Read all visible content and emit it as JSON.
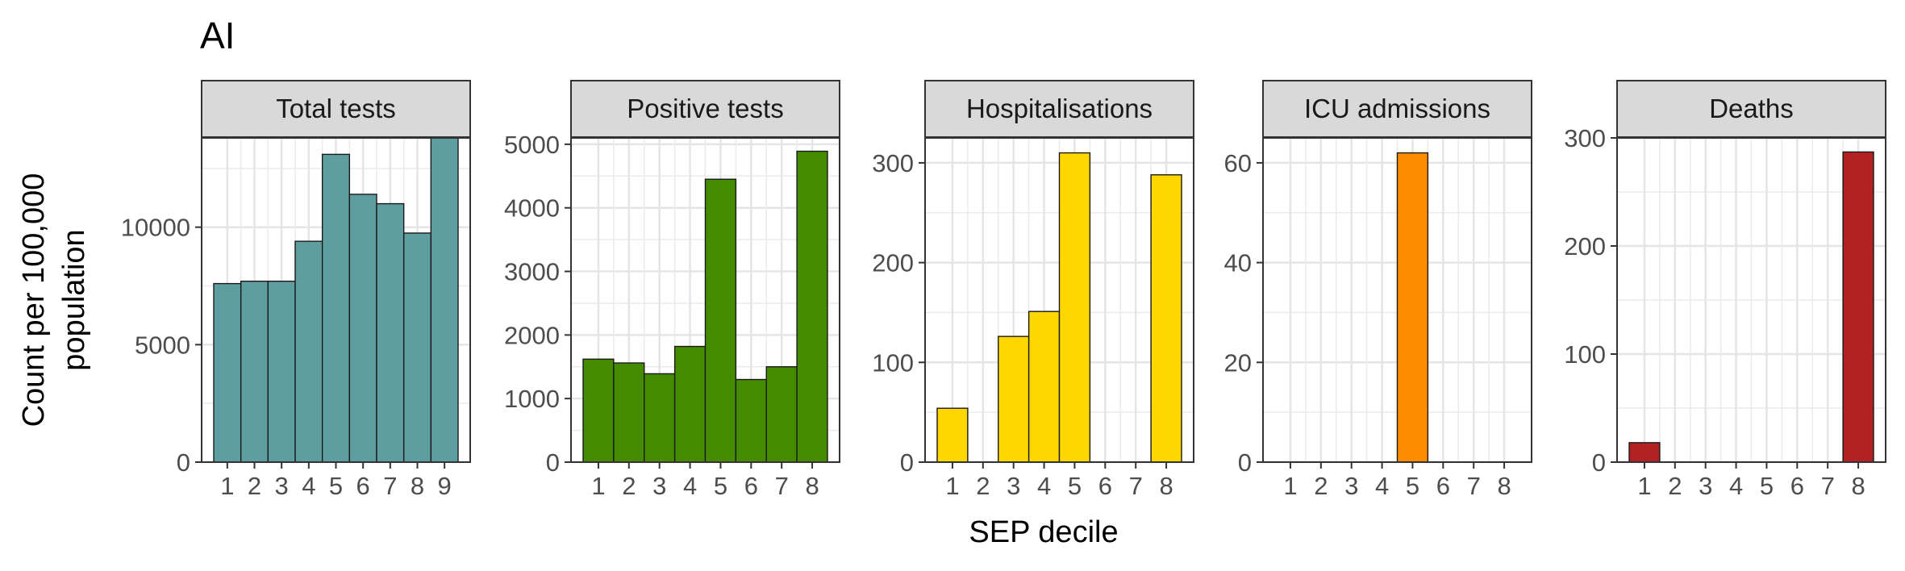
{
  "figure": {
    "tag": "AI",
    "ylabel_line1": "Count per 100,000",
    "ylabel_line2": "population",
    "xlabel": "SEP decile"
  },
  "chart_data": [
    {
      "type": "bar",
      "title": "Total tests",
      "color": "#5F9EA0",
      "categories": [
        "1",
        "2",
        "3",
        "4",
        "5",
        "6",
        "7",
        "8",
        "9"
      ],
      "values": [
        7600,
        7700,
        7700,
        9400,
        13100,
        11400,
        11000,
        9750,
        13800
      ],
      "ylim": [
        0,
        13800
      ],
      "yticks": [
        0,
        5000,
        10000
      ],
      "grid": true
    },
    {
      "type": "bar",
      "title": "Positive tests",
      "color": "#458B00",
      "categories": [
        "1",
        "2",
        "3",
        "4",
        "5",
        "6",
        "7",
        "8"
      ],
      "values": [
        1620,
        1560,
        1390,
        1820,
        4450,
        1300,
        1500,
        4890
      ],
      "ylim": [
        0,
        5100
      ],
      "yticks": [
        0,
        1000,
        2000,
        3000,
        4000,
        5000
      ],
      "grid": true
    },
    {
      "type": "bar",
      "title": "Hospitalisations",
      "color": "#FFD700",
      "categories": [
        "1",
        "2",
        "3",
        "4",
        "5",
        "6",
        "7",
        "8"
      ],
      "values": [
        54,
        0,
        126,
        151,
        310,
        0,
        0,
        288
      ],
      "ylim": [
        0,
        325
      ],
      "yticks": [
        0,
        100,
        200,
        300
      ],
      "grid": true
    },
    {
      "type": "bar",
      "title": "ICU admissions",
      "color": "#FF8C00",
      "categories": [
        "1",
        "2",
        "3",
        "4",
        "5",
        "6",
        "7",
        "8"
      ],
      "values": [
        0,
        0,
        0,
        0,
        62,
        0,
        0,
        0
      ],
      "ylim": [
        0,
        65
      ],
      "yticks": [
        0,
        20,
        40,
        60
      ],
      "grid": true
    },
    {
      "type": "bar",
      "title": "Deaths",
      "color": "#B22222",
      "categories": [
        "1",
        "2",
        "3",
        "4",
        "5",
        "6",
        "7",
        "8"
      ],
      "values": [
        18,
        0,
        0,
        0,
        0,
        0,
        0,
        287
      ],
      "ylim": [
        0,
        300
      ],
      "yticks": [
        0,
        100,
        200,
        300
      ],
      "grid": true
    }
  ]
}
